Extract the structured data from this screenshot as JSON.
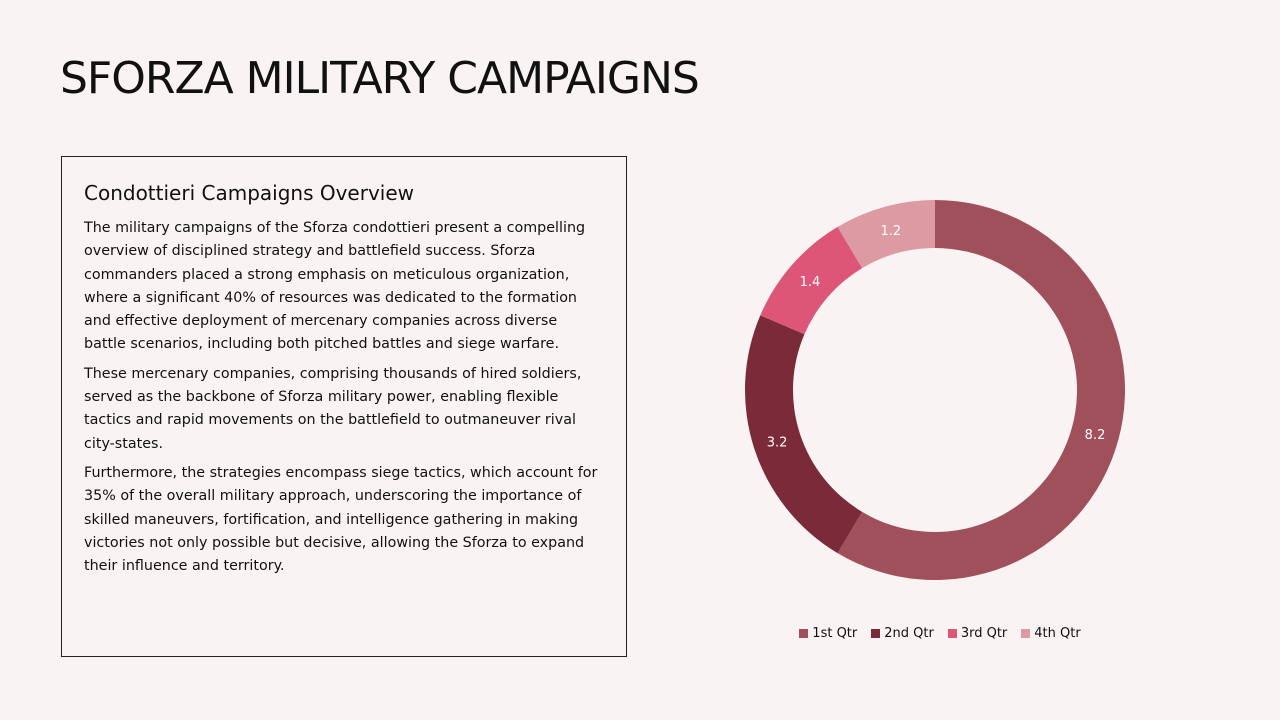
{
  "slide": {
    "title": "SFORZA MILITARY CAMPAIGNS"
  },
  "overview": {
    "heading": "Condottieri Campaigns Overview",
    "paragraphs": [
      "The military campaigns of the Sforza condottieri present a compelling overview of disciplined strategy and battlefield success. Sforza commanders placed a strong emphasis on meticulous organization, where a significant 40% of resources was dedicated to the formation and effective deployment of mercenary companies across diverse battle scenarios, including both pitched battles and siege warfare.",
      "These mercenary companies, comprising thousands of hired soldiers, served as the backbone of Sforza military power, enabling flexible tactics and rapid movements on the battlefield to outmaneuver rival city-states.",
      "Furthermore, the strategies encompass siege tactics, which account for 35% of the overall military approach, underscoring the importance of skilled maneuvers, fortification, and intelligence gathering in making victories not only possible but decisive, allowing the Sforza to expand their influence and territory."
    ]
  },
  "chart_data": {
    "type": "pie",
    "donut": true,
    "title": "",
    "categories": [
      "1st Qtr",
      "2nd Qtr",
      "3rd Qtr",
      "4th Qtr"
    ],
    "values": [
      8.2,
      3.2,
      1.4,
      1.2
    ],
    "colors": [
      "#a0505b",
      "#7a2a38",
      "#dd5577",
      "#dc9aa3"
    ],
    "data_labels": [
      "8.2",
      "3.2",
      "1.4",
      "1.2"
    ],
    "legend_position": "bottom"
  }
}
